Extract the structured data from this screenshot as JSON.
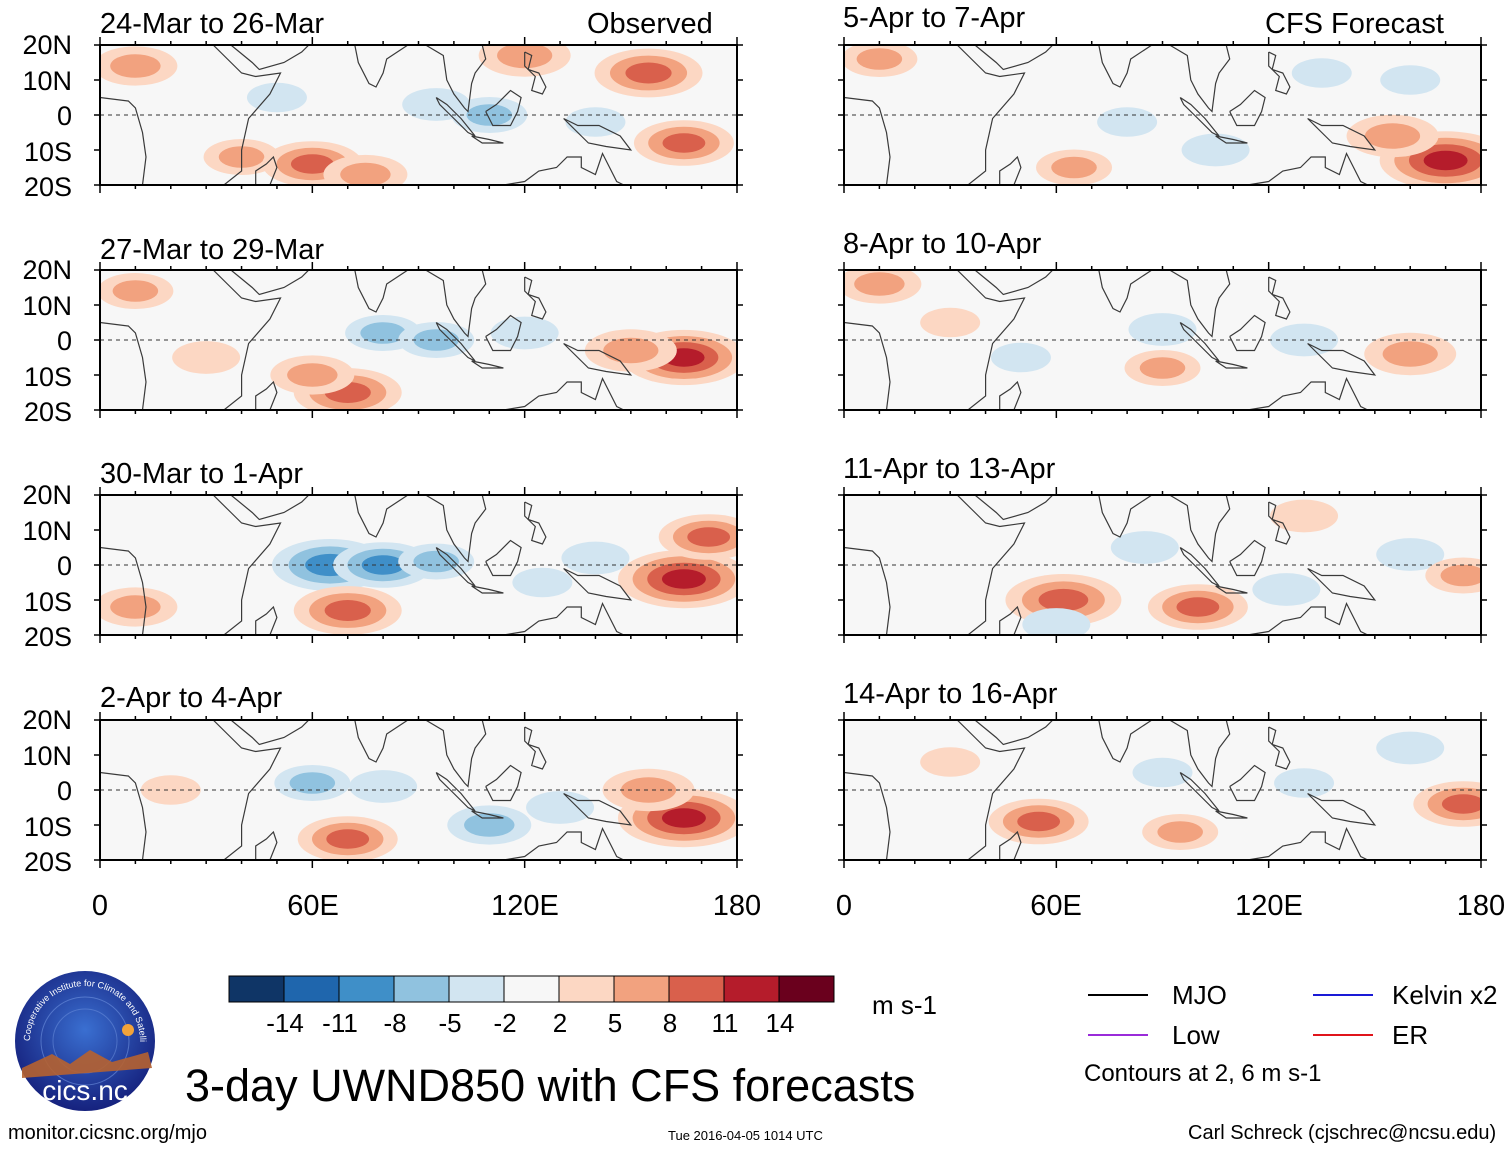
{
  "column_tags": {
    "observed": "Observed",
    "forecast": "CFS Forecast"
  },
  "lat_labels": [
    "20N",
    "10N",
    "0",
    "10S",
    "20S"
  ],
  "lon_labels": [
    "0",
    "60E",
    "120E",
    "180"
  ],
  "main_title": "3-day UWND850 with CFS forecasts",
  "units": "m s-1",
  "colorbar_ticks": [
    "-14",
    "-11",
    "-8",
    "-5",
    "-2",
    "2",
    "5",
    "8",
    "11",
    "14"
  ],
  "colorbar_colors": [
    "#0f3566",
    "#1f66ad",
    "#3f8fc8",
    "#90c2df",
    "#d2e5f1",
    "#f7f7f7",
    "#fcd7c3",
    "#f2a27f",
    "#d9604c",
    "#b51c2b",
    "#6a001d"
  ],
  "legend": {
    "mjo": {
      "label": "MJO",
      "color": "#000000"
    },
    "kelvin": {
      "label": "Kelvin x2",
      "color": "#1a1ad6"
    },
    "low": {
      "label": "Low",
      "color": "#9a2bd9"
    },
    "er": {
      "label": "ER",
      "color": "#e0141b"
    }
  },
  "contour_note": "Contours at 2, 6 m s-1",
  "footer": {
    "left": "monitor.cicsnc.org/mjo",
    "mid": "Tue 2016-04-05 1014 UTC",
    "right": "Carl Schreck (cjschrec@ncsu.edu)"
  },
  "logo": {
    "ring_text": "Cooperative Institute for Climate and Satellites",
    "name": "cics.nc"
  },
  "chart_data": [
    {
      "type": "heatmap",
      "title": "24-Mar to 26-Mar",
      "column": "observed",
      "xlim": [
        0,
        180
      ],
      "ylim": [
        -20,
        20
      ],
      "xticks": [
        0,
        60,
        120,
        180
      ],
      "yticks": [
        20,
        10,
        0,
        -10,
        -20
      ],
      "blobs": [
        {
          "lon": 10,
          "lat": 14,
          "v": 6
        },
        {
          "lon": 40,
          "lat": -12,
          "v": 5
        },
        {
          "lon": 60,
          "lat": -14,
          "v": 8
        },
        {
          "lon": 75,
          "lat": -17,
          "v": 6
        },
        {
          "lon": 120,
          "lat": 17,
          "v": 7
        },
        {
          "lon": 155,
          "lat": 12,
          "v": 9
        },
        {
          "lon": 165,
          "lat": -8,
          "v": 8
        },
        {
          "lon": 95,
          "lat": 3,
          "v": -4
        },
        {
          "lon": 110,
          "lat": 0,
          "v": -5
        },
        {
          "lon": 50,
          "lat": 5,
          "v": -3
        },
        {
          "lon": 140,
          "lat": -2,
          "v": -3
        }
      ]
    },
    {
      "type": "heatmap",
      "title": "27-Mar to 29-Mar",
      "column": "observed",
      "xlim": [
        0,
        180
      ],
      "ylim": [
        -20,
        20
      ],
      "xticks": [
        0,
        60,
        120,
        180
      ],
      "yticks": [
        20,
        10,
        0,
        -10,
        -20
      ],
      "blobs": [
        {
          "lon": 10,
          "lat": 14,
          "v": 5
        },
        {
          "lon": 70,
          "lat": -15,
          "v": 9
        },
        {
          "lon": 60,
          "lat": -10,
          "v": 6
        },
        {
          "lon": 165,
          "lat": -5,
          "v": 11
        },
        {
          "lon": 150,
          "lat": -3,
          "v": 7
        },
        {
          "lon": 80,
          "lat": 2,
          "v": -5
        },
        {
          "lon": 95,
          "lat": 0,
          "v": -5
        },
        {
          "lon": 120,
          "lat": 2,
          "v": -4
        },
        {
          "lon": 30,
          "lat": -5,
          "v": 4
        }
      ]
    },
    {
      "type": "heatmap",
      "title": "30-Mar to 1-Apr",
      "column": "observed",
      "xlim": [
        0,
        180
      ],
      "ylim": [
        -20,
        20
      ],
      "xticks": [
        0,
        60,
        120,
        180
      ],
      "yticks": [
        20,
        10,
        0,
        -10,
        -20
      ],
      "blobs": [
        {
          "lon": 65,
          "lat": 0,
          "v": -10
        },
        {
          "lon": 80,
          "lat": 0,
          "v": -8
        },
        {
          "lon": 95,
          "lat": 1,
          "v": -5
        },
        {
          "lon": 70,
          "lat": -13,
          "v": 9
        },
        {
          "lon": 165,
          "lat": -4,
          "v": 12
        },
        {
          "lon": 172,
          "lat": 8,
          "v": 8
        },
        {
          "lon": 10,
          "lat": -12,
          "v": 6
        },
        {
          "lon": 140,
          "lat": 2,
          "v": -4
        },
        {
          "lon": 125,
          "lat": -5,
          "v": -3
        }
      ]
    },
    {
      "type": "heatmap",
      "title": "2-Apr to 4-Apr",
      "column": "observed",
      "xlim": [
        0,
        180
      ],
      "ylim": [
        -20,
        20
      ],
      "xticks": [
        0,
        60,
        120,
        180
      ],
      "yticks": [
        20,
        10,
        0,
        -10,
        -20
      ],
      "blobs": [
        {
          "lon": 70,
          "lat": -14,
          "v": 8
        },
        {
          "lon": 165,
          "lat": -8,
          "v": 12
        },
        {
          "lon": 155,
          "lat": 0,
          "v": 7
        },
        {
          "lon": 60,
          "lat": 2,
          "v": -5
        },
        {
          "lon": 80,
          "lat": 1,
          "v": -4
        },
        {
          "lon": 110,
          "lat": -10,
          "v": -6
        },
        {
          "lon": 130,
          "lat": -5,
          "v": -4
        },
        {
          "lon": 20,
          "lat": 0,
          "v": 3
        }
      ]
    },
    {
      "type": "heatmap",
      "title": "5-Apr to 7-Apr",
      "column": "forecast",
      "xlim": [
        0,
        180
      ],
      "ylim": [
        -20,
        20
      ],
      "xticks": [
        0,
        60,
        120,
        180
      ],
      "yticks": [
        20,
        10,
        0,
        -10,
        -20
      ],
      "blobs": [
        {
          "lon": 10,
          "lat": 16,
          "v": 5
        },
        {
          "lon": 170,
          "lat": -13,
          "v": 12
        },
        {
          "lon": 155,
          "lat": -6,
          "v": 7
        },
        {
          "lon": 65,
          "lat": -15,
          "v": 5
        },
        {
          "lon": 80,
          "lat": -2,
          "v": -3
        },
        {
          "lon": 135,
          "lat": 12,
          "v": -3
        },
        {
          "lon": 105,
          "lat": -10,
          "v": -4
        },
        {
          "lon": 160,
          "lat": 10,
          "v": -3
        }
      ]
    },
    {
      "type": "heatmap",
      "title": "8-Apr to 10-Apr",
      "column": "forecast",
      "xlim": [
        0,
        180
      ],
      "ylim": [
        -20,
        20
      ],
      "xticks": [
        0,
        60,
        120,
        180
      ],
      "yticks": [
        20,
        10,
        0,
        -10,
        -20
      ],
      "blobs": [
        {
          "lon": 10,
          "lat": 16,
          "v": 6
        },
        {
          "lon": 160,
          "lat": -4,
          "v": 7
        },
        {
          "lon": 90,
          "lat": -8,
          "v": 5
        },
        {
          "lon": 90,
          "lat": 3,
          "v": -4
        },
        {
          "lon": 130,
          "lat": 0,
          "v": -4
        },
        {
          "lon": 50,
          "lat": -5,
          "v": -3
        },
        {
          "lon": 30,
          "lat": 5,
          "v": 3
        }
      ]
    },
    {
      "type": "heatmap",
      "title": "11-Apr to 13-Apr",
      "column": "forecast",
      "xlim": [
        0,
        180
      ],
      "ylim": [
        -20,
        20
      ],
      "xticks": [
        0,
        60,
        120,
        180
      ],
      "yticks": [
        20,
        10,
        0,
        -10,
        -20
      ],
      "blobs": [
        {
          "lon": 62,
          "lat": -10,
          "v": 10
        },
        {
          "lon": 100,
          "lat": -12,
          "v": 8
        },
        {
          "lon": 85,
          "lat": 5,
          "v": -4
        },
        {
          "lon": 60,
          "lat": -17,
          "v": -4
        },
        {
          "lon": 125,
          "lat": -7,
          "v": -4
        },
        {
          "lon": 160,
          "lat": 3,
          "v": -4
        },
        {
          "lon": 130,
          "lat": 14,
          "v": 4
        },
        {
          "lon": 175,
          "lat": -3,
          "v": 5
        }
      ]
    },
    {
      "type": "heatmap",
      "title": "14-Apr to 16-Apr",
      "column": "forecast",
      "xlim": [
        0,
        180
      ],
      "ylim": [
        -20,
        20
      ],
      "xticks": [
        0,
        60,
        120,
        180
      ],
      "yticks": [
        20,
        10,
        0,
        -10,
        -20
      ],
      "blobs": [
        {
          "lon": 55,
          "lat": -9,
          "v": 8
        },
        {
          "lon": 95,
          "lat": -12,
          "v": 5
        },
        {
          "lon": 175,
          "lat": -4,
          "v": 8
        },
        {
          "lon": 160,
          "lat": 12,
          "v": -4
        },
        {
          "lon": 90,
          "lat": 5,
          "v": -3
        },
        {
          "lon": 130,
          "lat": 2,
          "v": -3
        },
        {
          "lon": 30,
          "lat": 8,
          "v": 3
        }
      ]
    }
  ]
}
